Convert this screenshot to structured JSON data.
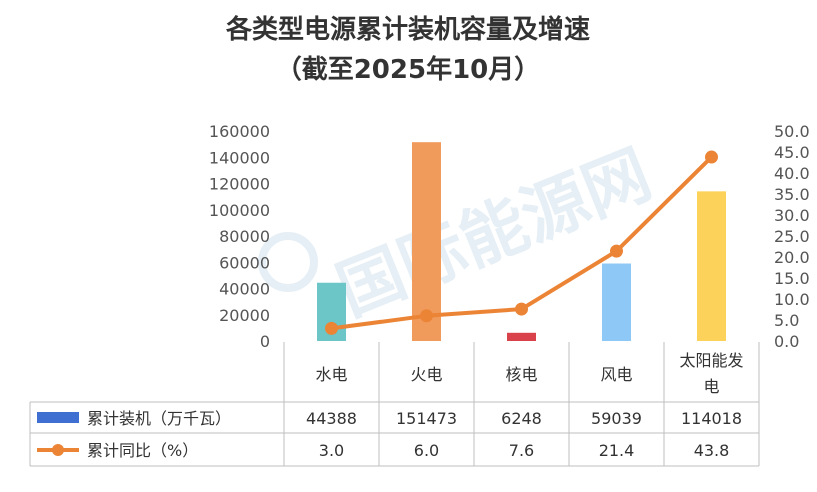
{
  "chart_data": {
    "type": "bar",
    "title": "各类型电源累计装机容量及增速",
    "subtitle": "（截至2025年10月）",
    "categories": [
      [
        "水电"
      ],
      [
        "火电"
      ],
      [
        "核电"
      ],
      [
        "风电"
      ],
      [
        "太阳能发",
        "电"
      ]
    ],
    "series": [
      {
        "name": "累计装机（万千瓦）",
        "type": "bar",
        "axis": "left",
        "values": [
          44388,
          151473,
          6248,
          59039,
          114018
        ],
        "value_labels": [
          "44388",
          "151473",
          "6248",
          "59039",
          "114018"
        ]
      },
      {
        "name": "累计同比（%）",
        "type": "line",
        "axis": "right",
        "values": [
          3.0,
          6.0,
          7.6,
          21.4,
          43.8
        ],
        "value_labels": [
          "3.0",
          "6.0",
          "7.6",
          "21.4",
          "43.8"
        ]
      }
    ],
    "y_left": {
      "range": [
        0,
        160000
      ],
      "ticks": [
        0,
        20000,
        40000,
        60000,
        80000,
        100000,
        120000,
        140000,
        160000
      ],
      "tick_labels": [
        "0",
        "20000",
        "40000",
        "60000",
        "80000",
        "100000",
        "120000",
        "140000",
        "160000"
      ]
    },
    "y_right": {
      "range": [
        0,
        50
      ],
      "ticks": [
        0,
        5,
        10,
        15,
        20,
        25,
        30,
        35,
        40,
        45,
        50
      ],
      "tick_labels": [
        "0.0",
        "5.0",
        "10.0",
        "15.0",
        "20.0",
        "25.0",
        "30.0",
        "35.0",
        "40.0",
        "45.0",
        "50.0"
      ]
    },
    "grid": false,
    "legend": "data-table-bottom",
    "watermark": "国际能源网"
  },
  "colors": {
    "bars": [
      "#6cc5c6",
      "#f09a5c",
      "#d9424b",
      "#8ec8f6",
      "#fcd25a"
    ],
    "legend_bar": "#3f6fd0",
    "line": "#ec8436",
    "text": "#333333",
    "table_border": "#bfbfbf",
    "watermark": "#c8dcea"
  }
}
